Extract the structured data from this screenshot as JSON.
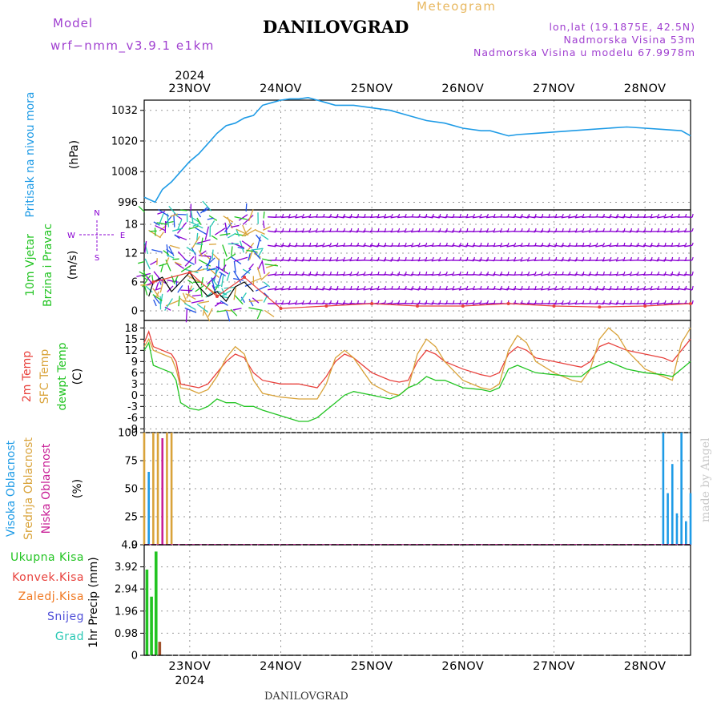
{
  "header": {
    "model_label": "Model",
    "model_name": "wrf−nmm_v3.9.1  e1km",
    "title": "DANILOVGRAD",
    "meteogram_label": "Meteogram",
    "lonlat": "lon,lat (19.1875E, 42.5N)",
    "altitude": "Nadmorska Visina 53m",
    "model_altitude": "Nadmorska Visina u modelu 67.9978m"
  },
  "footer": {
    "station": "DANILOVGRAD"
  },
  "watermark": "made by Angel",
  "colors": {
    "pressure": "#1e9be6",
    "temp2m": "#e8413c",
    "sfc_temp": "#d9a33a",
    "dewpoint": "#22c422",
    "high_cloud": "#1e9be6",
    "mid_cloud": "#d9a33a",
    "low_cloud": "#c81e96",
    "total_precip": "#22c422",
    "conv_precip": "#e8413c",
    "frozen_precip": "#f07820",
    "snow": "#5050d8",
    "hail": "#28c8b4",
    "wind_label": "#22c422",
    "wind_purple": "#8a00d2",
    "wind_blue": "#1e50e6"
  },
  "chart_data": {
    "x_axis": {
      "type": "time",
      "year": "2024",
      "tick_labels": [
        "23NOV",
        "24NOV",
        "25NOV",
        "26NOV",
        "27NOV",
        "28NOV"
      ],
      "range_days": [
        22.5,
        28.5
      ]
    },
    "panels": [
      {
        "id": "pressure",
        "type": "line",
        "ylabel": "(hPa)",
        "side_labels": [
          "Pritisak na nivou mora"
        ],
        "yticks": [
          996,
          1008,
          1020,
          1032
        ],
        "ylim": [
          993,
          1036
        ],
        "series": [
          {
            "x": [
              22.5,
              22.62,
              22.7,
              22.8,
              22.9,
              23.0,
              23.1,
              23.2,
              23.3,
              23.4,
              23.5,
              23.6,
              23.7,
              23.8,
              23.9,
              24.0,
              24.1,
              24.2,
              24.3,
              24.4,
              24.5,
              24.6,
              24.8,
              25.0,
              25.2,
              25.4,
              25.6,
              25.8,
              26.0,
              26.2,
              26.3,
              26.4,
              26.5,
              26.6,
              26.8,
              27.0,
              27.2,
              27.4,
              27.6,
              27.8,
              28.0,
              28.2,
              28.4,
              28.5
            ],
            "y": [
              998,
              996,
              1001,
              1004,
              1008,
              1012,
              1015,
              1019,
              1023,
              1026,
              1027,
              1029,
              1030,
              1034,
              1035,
              1036,
              1036.5,
              1036.5,
              1037,
              1036,
              1035,
              1034,
              1034,
              1033,
              1032,
              1030,
              1028,
              1027,
              1025,
              1024,
              1024,
              1023,
              1022,
              1022.5,
              1023,
              1023.5,
              1024,
              1024.5,
              1025,
              1025.5,
              1025,
              1024.5,
              1024,
              1022
            ]
          }
        ]
      },
      {
        "id": "wind",
        "type": "scatter",
        "ylabel": "(m/s)",
        "side_labels": [
          "10m Vjetar",
          "Brzina i Pravac"
        ],
        "compass": [
          "N",
          "W",
          "E",
          "S"
        ],
        "yticks": [
          0,
          6,
          12,
          18
        ],
        "ylim": [
          -2,
          21
        ],
        "series": [
          {
            "name": "",
            "x": [
              22.55,
              22.6,
              22.7,
              22.8,
              22.9,
              23.0,
              23.1,
              23.2,
              23.3,
              23.4,
              23.5,
              23.6,
              23.7
            ],
            "y": [
              3,
              6,
              7,
              4,
              6,
              8,
              5,
              3,
              4,
              2,
              5,
              6,
              4
            ]
          },
          {
            "name": "",
            "x": [
              22.6,
              23.0,
              23.3,
              23.6,
              24.0,
              24.5,
              25.0,
              25.5,
              26.0,
              26.5,
              27.0,
              27.5,
              28.0,
              28.5
            ],
            "y": [
              6,
              8,
              3,
              7,
              0.5,
              1,
              1.5,
              1,
              1,
              1.5,
              1,
              0.8,
              1,
              1.5
            ]
          }
        ]
      },
      {
        "id": "temperature",
        "type": "line",
        "ylabel": "(C)",
        "side_labels": [
          "2m Temp",
          "SFC Temp",
          "dewpt Temp"
        ],
        "yticks": [
          -9,
          -6,
          -3,
          0,
          3,
          6,
          9,
          12,
          15,
          18
        ],
        "ylim": [
          -10,
          20
        ],
        "series": [
          {
            "name": "2m Temp",
            "x": [
              22.5,
              22.55,
              22.6,
              22.7,
              22.8,
              22.85,
              22.9,
              23.0,
              23.1,
              23.2,
              23.3,
              23.4,
              23.5,
              23.6,
              23.7,
              23.8,
              24.0,
              24.2,
              24.3,
              24.4,
              24.5,
              24.6,
              24.7,
              24.8,
              25.0,
              25.2,
              25.3,
              25.4,
              25.5,
              25.6,
              25.7,
              25.8,
              26.0,
              26.2,
              26.3,
              26.4,
              26.5,
              26.6,
              26.7,
              26.8,
              27.0,
              27.2,
              27.3,
              27.4,
              27.5,
              27.6,
              27.7,
              27.8,
              28.0,
              28.2,
              28.3,
              28.4,
              28.5
            ],
            "y": [
              14,
              17,
              13,
              12,
              11,
              9,
              3,
              2.5,
              2,
              3,
              6,
              9,
              11,
              10,
              6,
              4,
              3,
              3,
              2.5,
              2,
              5,
              9,
              11,
              10,
              6,
              4,
              3.5,
              4,
              9,
              12,
              11,
              9,
              7,
              5.5,
              5,
              6,
              11,
              13,
              12,
              10,
              9,
              8,
              7.5,
              9,
              13,
              14,
              13,
              12,
              11,
              10,
              9,
              12,
              15
            ]
          },
          {
            "name": "SFC Temp",
            "x": [
              22.5,
              22.55,
              22.6,
              22.7,
              22.8,
              22.85,
              22.9,
              23.0,
              23.1,
              23.2,
              23.3,
              23.4,
              23.5,
              23.6,
              23.7,
              23.8,
              24.0,
              24.2,
              24.3,
              24.4,
              24.5,
              24.6,
              24.7,
              24.8,
              25.0,
              25.2,
              25.3,
              25.4,
              25.5,
              25.6,
              25.7,
              25.8,
              26.0,
              26.2,
              26.3,
              26.4,
              26.5,
              26.6,
              26.7,
              26.8,
              27.0,
              27.2,
              27.3,
              27.4,
              27.5,
              27.6,
              27.7,
              27.8,
              28.0,
              28.2,
              28.3,
              28.4,
              28.5
            ],
            "y": [
              13,
              15,
              12,
              11,
              10,
              7,
              2,
              1.5,
              0.5,
              1.5,
              5,
              10,
              13,
              11,
              4,
              0.5,
              -0.5,
              -1,
              -1,
              -1,
              3,
              10,
              12,
              10,
              3,
              0.5,
              0,
              2,
              11,
              15,
              13,
              9,
              4,
              2,
              1.5,
              3,
              12,
              16,
              14,
              9,
              6,
              4,
              3.5,
              7,
              15,
              18,
              16,
              12,
              7,
              5,
              4,
              14,
              18
            ]
          },
          {
            "name": "dewpt Temp",
            "x": [
              22.5,
              22.55,
              22.6,
              22.7,
              22.8,
              22.85,
              22.9,
              23.0,
              23.1,
              23.2,
              23.3,
              23.4,
              23.5,
              23.6,
              23.7,
              23.8,
              24.0,
              24.2,
              24.3,
              24.4,
              24.5,
              24.6,
              24.7,
              24.8,
              25.0,
              25.2,
              25.3,
              25.4,
              25.5,
              25.6,
              25.7,
              25.8,
              26.0,
              26.2,
              26.3,
              26.4,
              26.5,
              26.6,
              26.7,
              26.8,
              27.0,
              27.2,
              27.3,
              27.4,
              27.5,
              27.6,
              27.7,
              27.8,
              28.0,
              28.2,
              28.3,
              28.4,
              28.5
            ],
            "y": [
              12,
              14,
              8,
              7,
              6,
              4,
              -2,
              -3.5,
              -4,
              -3,
              -1,
              -2,
              -2,
              -3,
              -3,
              -4,
              -5.5,
              -7,
              -7,
              -6,
              -4,
              -2,
              0,
              1,
              0,
              -1,
              0,
              2,
              3,
              5,
              4,
              4,
              2,
              1.5,
              1,
              2,
              7,
              8,
              7,
              6,
              5.5,
              5,
              5,
              7,
              8,
              9,
              8,
              7,
              6,
              5.5,
              5,
              7,
              9
            ]
          }
        ]
      },
      {
        "id": "clouds",
        "type": "bar",
        "ylabel": "(%)",
        "side_labels": [
          "Visoka Oblacnost",
          "Srednja Oblacnost",
          "Niska Oblacnost"
        ],
        "yticks": [
          0,
          25,
          50,
          75,
          100
        ],
        "ylim": [
          0,
          100
        ],
        "series": [
          {
            "name": "Visoka Oblacnost",
            "x": [
              22.55,
              28.2,
              28.25,
              28.3,
              28.35,
              28.4,
              28.45,
              28.5
            ],
            "values": [
              65,
              100,
              46,
              72,
              28,
              100,
              21,
              46
            ]
          },
          {
            "name": "Srednja Oblacnost",
            "x": [
              22.5,
              22.6,
              22.65,
              22.75,
              22.8
            ],
            "values": [
              100,
              100,
              100,
              100,
              100
            ]
          },
          {
            "name": "Niska Oblacnost",
            "x": [
              22.7
            ],
            "values": [
              95
            ]
          }
        ]
      },
      {
        "id": "precip",
        "type": "bar",
        "ylabel": "1hr Precip (mm)",
        "side_labels": [
          "Ukupna Kisa",
          "Konvek.Kisa",
          "Zaledj.Kisa",
          "Snijeg",
          "Grad"
        ],
        "ytick_labels": [
          "0",
          "0.98",
          "1.96",
          "2.94",
          "3.92",
          "4.9"
        ],
        "ylim": [
          0,
          4.9
        ],
        "series": [
          {
            "name": "Ukupna Kisa",
            "x": [
              22.53,
              22.58,
              22.63
            ],
            "values": [
              3.8,
              2.6,
              4.6
            ]
          },
          {
            "name": "Zaledj.Kisa",
            "x": [
              22.67
            ],
            "values": [
              0.6
            ]
          }
        ]
      }
    ]
  }
}
